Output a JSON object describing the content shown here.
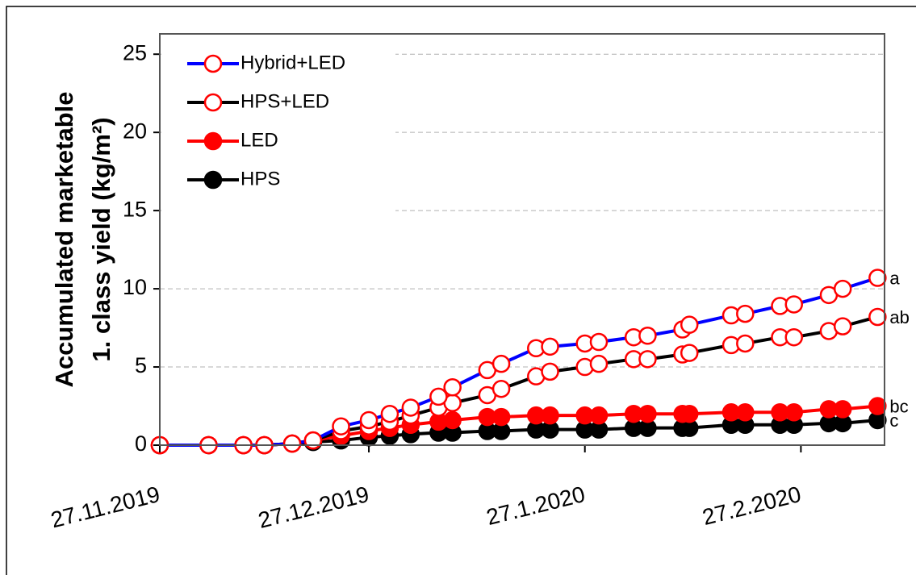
{
  "chart_data": {
    "type": "line",
    "y_title_lines": [
      "Accumulated marketable",
      "1. class yield (kg/m²)"
    ],
    "x": [
      "2019-11-27",
      "2019-12-04",
      "2019-12-09",
      "2019-12-12",
      "2019-12-16",
      "2019-12-19",
      "2019-12-23",
      "2019-12-27",
      "2019-12-30",
      "2020-01-02",
      "2020-01-06",
      "2020-01-08",
      "2020-01-13",
      "2020-01-15",
      "2020-01-20",
      "2020-01-22",
      "2020-01-27",
      "2020-01-29",
      "2020-02-03",
      "2020-02-05",
      "2020-02-10",
      "2020-02-11",
      "2020-02-17",
      "2020-02-19",
      "2020-02-24",
      "2020-02-26",
      "2020-03-02",
      "2020-03-04",
      "2020-03-09"
    ],
    "series": [
      {
        "name": "Hybrid+LED",
        "color": "#0000ff",
        "marker_color": "#ff0000",
        "filled": false,
        "end_label": "a",
        "values": [
          0,
          0,
          0,
          0,
          0.1,
          0.3,
          1.2,
          1.6,
          2.0,
          2.4,
          3.1,
          3.7,
          4.8,
          5.2,
          6.2,
          6.3,
          6.5,
          6.6,
          6.9,
          7.0,
          7.4,
          7.7,
          8.3,
          8.4,
          8.9,
          9.0,
          9.6,
          10.0,
          10.7
        ]
      },
      {
        "name": "HPS+LED",
        "color": "#000000",
        "marker_color": "#ff0000",
        "filled": false,
        "end_label": "ab",
        "values": [
          0,
          0,
          0,
          0,
          0.1,
          0.3,
          0.9,
          1.2,
          1.5,
          1.9,
          2.4,
          2.7,
          3.2,
          3.6,
          4.4,
          4.7,
          5.0,
          5.2,
          5.5,
          5.5,
          5.8,
          5.9,
          6.4,
          6.5,
          6.9,
          6.9,
          7.3,
          7.6,
          8.2
        ]
      },
      {
        "name": "LED",
        "color": "#ff0000",
        "marker_color": "#ff0000",
        "filled": true,
        "end_label": "bc",
        "values": [
          0,
          0,
          0,
          0,
          0.1,
          0.3,
          0.6,
          0.9,
          1.1,
          1.3,
          1.5,
          1.6,
          1.8,
          1.8,
          1.9,
          1.9,
          1.9,
          1.9,
          2.0,
          2.0,
          2.0,
          2.0,
          2.1,
          2.1,
          2.1,
          2.1,
          2.3,
          2.3,
          2.5
        ]
      },
      {
        "name": "HPS",
        "color": "#000000",
        "marker_color": "#000000",
        "filled": true,
        "end_label": "c",
        "values": [
          0,
          0,
          0,
          0,
          0.1,
          0.2,
          0.3,
          0.5,
          0.6,
          0.7,
          0.8,
          0.8,
          0.9,
          0.9,
          1.0,
          1.0,
          1.0,
          1.0,
          1.1,
          1.1,
          1.1,
          1.1,
          1.3,
          1.3,
          1.3,
          1.3,
          1.4,
          1.4,
          1.6
        ]
      }
    ],
    "xlim": [
      "2019-11-27",
      "2020-03-10"
    ],
    "xticks": [
      {
        "value": "2019-11-27",
        "label": "27.11.2019"
      },
      {
        "value": "2019-12-27",
        "label": "27.12.2019"
      },
      {
        "value": "2020-01-27",
        "label": "27.1.2020"
      },
      {
        "value": "2020-02-27",
        "label": "27.2.2020"
      }
    ],
    "ylim": [
      0,
      26.3
    ],
    "yticks": [
      0,
      5,
      10,
      15,
      20,
      25
    ],
    "grid": true,
    "legend": "upper-left"
  }
}
